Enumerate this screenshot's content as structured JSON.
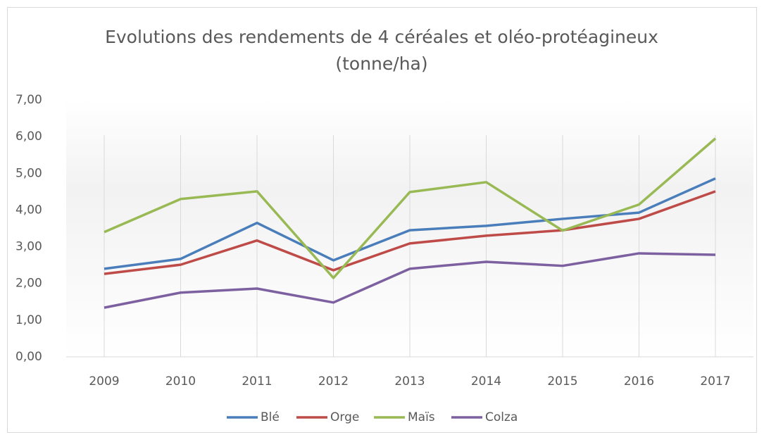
{
  "chart_data": {
    "type": "line",
    "title": "Evolutions des rendements de 4 céréales et oléo-protéagineux",
    "subtitle": "(tonne/ha)",
    "categories": [
      "2009",
      "2010",
      "2011",
      "2012",
      "2013",
      "2014",
      "2015",
      "2016",
      "2017"
    ],
    "series": [
      {
        "name": "Blé",
        "color": "#4a7ebb",
        "values": [
          2.4,
          2.67,
          3.65,
          2.63,
          3.45,
          3.57,
          3.76,
          3.93,
          4.86
        ]
      },
      {
        "name": "Orge",
        "color": "#be4b48",
        "values": [
          2.26,
          2.51,
          3.17,
          2.36,
          3.09,
          3.3,
          3.45,
          3.76,
          4.51
        ]
      },
      {
        "name": "Maïs",
        "color": "#98b954",
        "values": [
          3.4,
          4.3,
          4.51,
          2.15,
          4.49,
          4.76,
          3.44,
          4.15,
          5.95
        ]
      },
      {
        "name": "Colza",
        "color": "#7d60a0",
        "values": [
          1.34,
          1.75,
          1.86,
          1.48,
          2.4,
          2.59,
          2.48,
          2.82,
          2.78
        ]
      }
    ],
    "ylim": [
      0,
      7
    ],
    "yticks": [
      {
        "value": 0,
        "label": "0,00"
      },
      {
        "value": 1,
        "label": "1,00"
      },
      {
        "value": 2,
        "label": "2,00"
      },
      {
        "value": 3,
        "label": "3,00"
      },
      {
        "value": 4,
        "label": "4,00"
      },
      {
        "value": 5,
        "label": "5,00"
      },
      {
        "value": 6,
        "label": "6,00"
      },
      {
        "value": 7,
        "label": "7,00"
      }
    ],
    "legend": "bottom"
  }
}
